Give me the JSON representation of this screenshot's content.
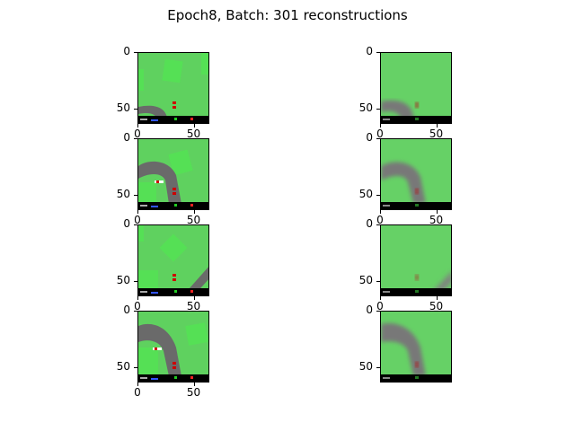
{
  "figure": {
    "title": "Epoch8, Batch: 301 reconstructions"
  },
  "axes": {
    "y_ticks": [
      "0",
      "50"
    ],
    "x_ticks": [
      "0",
      "50"
    ]
  },
  "panels": [
    {
      "id": "r1-left",
      "kind": "original",
      "road": "bottom-left-curve",
      "has_x_axis": true
    },
    {
      "id": "r1-right",
      "kind": "reconstruction",
      "road": "bottom-left-curve-blurred",
      "has_x_axis": true
    },
    {
      "id": "r2-left",
      "kind": "original",
      "road": "arc-upper-left",
      "has_x_axis": true
    },
    {
      "id": "r2-right",
      "kind": "reconstruction",
      "road": "arc-upper-left-blurred",
      "has_x_axis": true
    },
    {
      "id": "r3-left",
      "kind": "original",
      "road": "bottom-right-diagonal",
      "has_x_axis": true
    },
    {
      "id": "r3-right",
      "kind": "reconstruction",
      "road": "bottom-right-diagonal-blurred",
      "has_x_axis": true
    },
    {
      "id": "r4-left",
      "kind": "original",
      "road": "arc-left",
      "has_x_axis": true
    },
    {
      "id": "r4-right",
      "kind": "reconstruction",
      "road": "arc-left-blurred",
      "has_x_axis": false
    }
  ],
  "colors": {
    "grass": "#5fd15f",
    "grass_light": "#66dd66",
    "road": "#6a6a6a",
    "hud": "#000000",
    "car": "#cc0000"
  }
}
